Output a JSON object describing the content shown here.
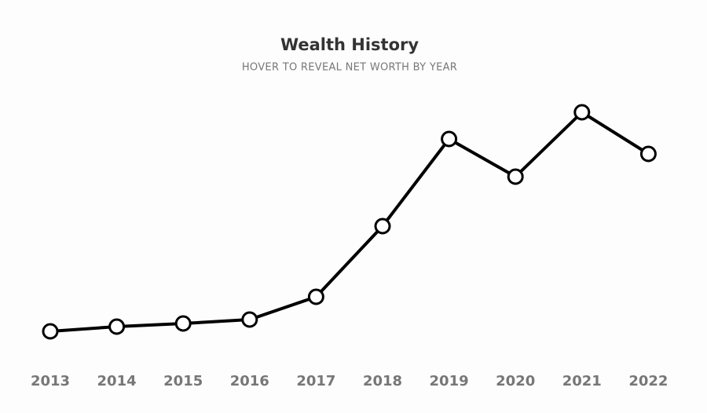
{
  "chart_data": {
    "type": "line",
    "title": "Wealth History",
    "subtitle": "HOVER TO REVEAL NET WORTH BY YEAR",
    "categories": [
      "2013",
      "2014",
      "2015",
      "2016",
      "2017",
      "2018",
      "2019",
      "2020",
      "2021",
      "2022"
    ],
    "values": [
      38,
      44,
      48,
      53,
      82,
      172,
      283,
      235,
      317,
      264
    ],
    "color": "#000000",
    "ylim": [
      0,
      320
    ]
  }
}
